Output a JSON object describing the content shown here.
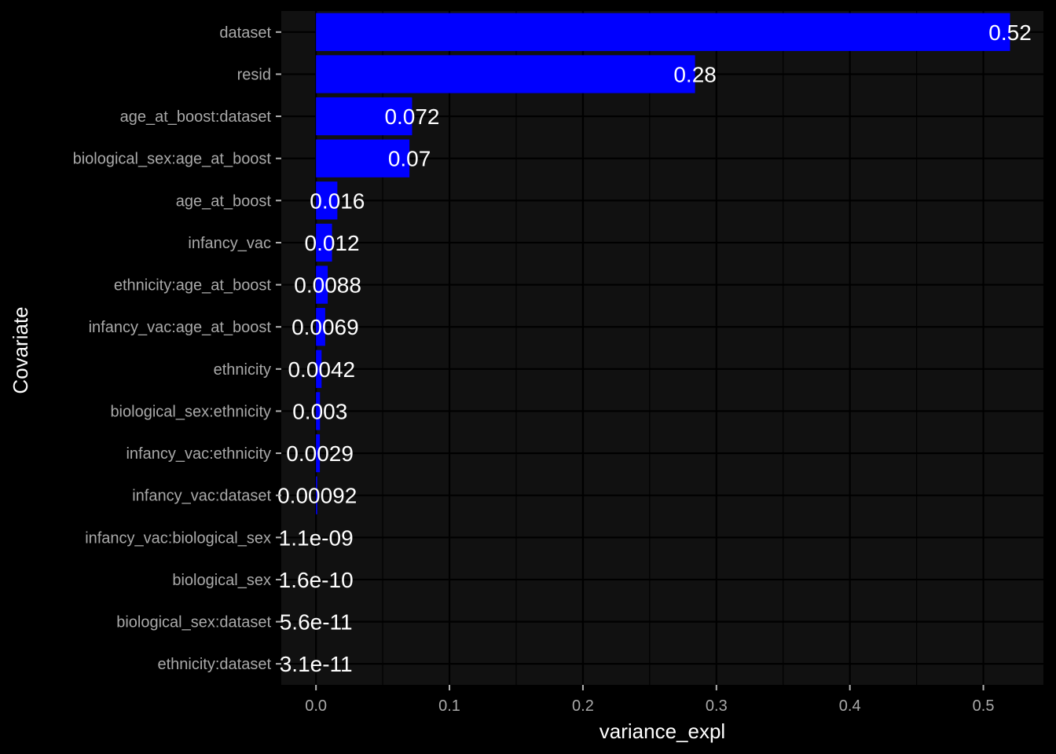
{
  "chart_data": {
    "type": "bar",
    "orientation": "horizontal",
    "categories": [
      "dataset",
      "resid",
      "age_at_boost:dataset",
      "biological_sex:age_at_boost",
      "age_at_boost",
      "infancy_vac",
      "ethnicity:age_at_boost",
      "infancy_vac:age_at_boost",
      "ethnicity",
      "biological_sex:ethnicity",
      "infancy_vac:ethnicity",
      "infancy_vac:dataset",
      "infancy_vac:biological_sex",
      "biological_sex",
      "biological_sex:dataset",
      "ethnicity:dataset"
    ],
    "values": [
      0.52,
      0.284,
      0.072,
      0.07,
      0.016,
      0.012,
      0.0088,
      0.0069,
      0.0042,
      0.003,
      0.0029,
      0.00092,
      1.1e-09,
      1.6e-10,
      5.6e-11,
      3.1e-11
    ],
    "data_labels": [
      "0.52",
      "0.28",
      "0.072",
      "0.07",
      "0.016",
      "0.012",
      "0.0088",
      "0.0069",
      "0.0042",
      "0.003",
      "0.0029",
      "0.00092",
      "1.1e-09",
      "1.6e-10",
      "5.6e-11",
      "3.1e-11"
    ],
    "title": "",
    "xlabel": "variance_expl",
    "ylabel": "Covariate",
    "xlim": [
      -0.026,
      0.545
    ],
    "xticks": [
      0,
      0.1,
      0.2,
      0.3,
      0.4,
      0.5
    ],
    "xtick_labels": [
      "0.0",
      "0.1",
      "0.2",
      "0.3",
      "0.4",
      "0.5"
    ],
    "grid": true,
    "legend": "none",
    "colors": {
      "bar": "#0000ff",
      "background": "#000000",
      "panel": "#111111",
      "grid": "#000000",
      "tick_text": "#a9a9a9",
      "title_text": "#ffffff",
      "label_text": "#ffffff"
    }
  }
}
